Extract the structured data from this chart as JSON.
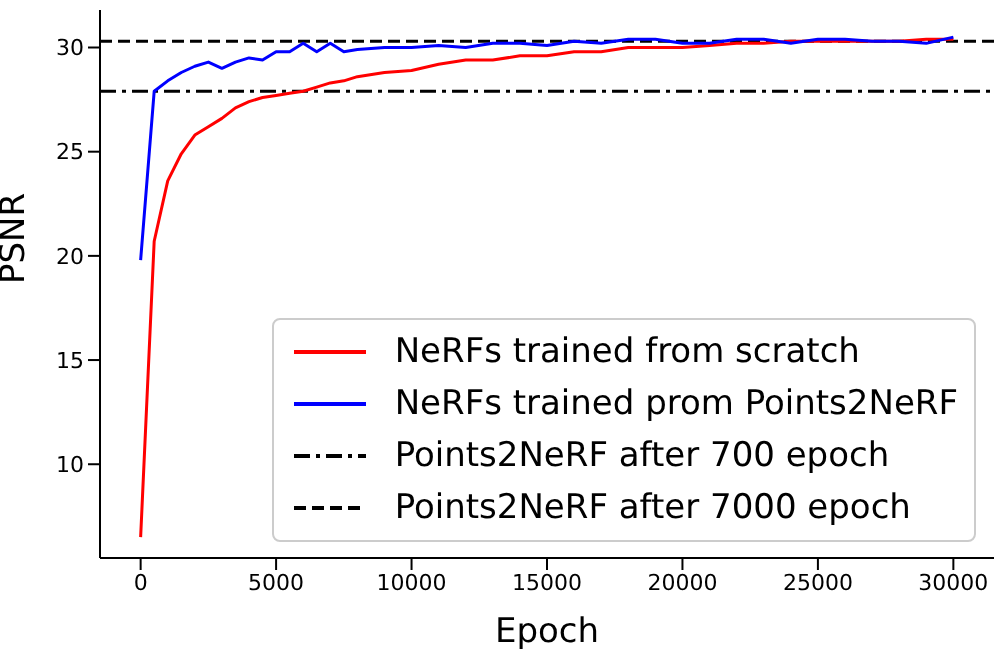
{
  "chart_data": {
    "type": "line",
    "xlabel": "Epoch",
    "ylabel": "PSNR",
    "xlim": [
      -1500,
      31500
    ],
    "xticks": [
      0,
      5000,
      10000,
      15000,
      20000,
      25000,
      30000
    ],
    "ylim": [
      5.5,
      31.8
    ],
    "yticks": [
      10,
      15,
      20,
      25,
      30
    ],
    "x": [
      0,
      500,
      1000,
      1500,
      2000,
      2500,
      3000,
      3500,
      4000,
      4500,
      5000,
      5500,
      6000,
      6500,
      7000,
      7500,
      8000,
      9000,
      10000,
      11000,
      12000,
      13000,
      14000,
      15000,
      16000,
      17000,
      18000,
      19000,
      20000,
      21000,
      22000,
      23000,
      24000,
      25000,
      26000,
      27000,
      28000,
      29000,
      30000
    ],
    "series": [
      {
        "name": "NeRFs trained from scratch",
        "color": "#ff0000",
        "values": [
          6.5,
          20.7,
          23.6,
          24.9,
          25.8,
          26.2,
          26.6,
          27.1,
          27.4,
          27.6,
          27.7,
          27.8,
          27.9,
          28.1,
          28.3,
          28.4,
          28.6,
          28.8,
          28.9,
          29.2,
          29.4,
          29.4,
          29.6,
          29.6,
          29.8,
          29.8,
          30.0,
          30.0,
          30.0,
          30.1,
          30.2,
          30.2,
          30.3,
          30.3,
          30.3,
          30.3,
          30.3,
          30.4,
          30.4
        ]
      },
      {
        "name": "NeRFs trained prom Points2NeRF",
        "color": "#0000ff",
        "values": [
          19.8,
          27.9,
          28.4,
          28.8,
          29.1,
          29.3,
          29.0,
          29.3,
          29.5,
          29.4,
          29.8,
          29.8,
          30.2,
          29.8,
          30.2,
          29.8,
          29.9,
          30.0,
          30.0,
          30.1,
          30.0,
          30.2,
          30.2,
          30.1,
          30.3,
          30.2,
          30.4,
          30.4,
          30.2,
          30.2,
          30.4,
          30.4,
          30.2,
          30.4,
          30.4,
          30.3,
          30.3,
          30.2,
          30.5
        ]
      }
    ],
    "ref_lines": [
      {
        "axis": "y",
        "value": 27.9,
        "label": "Points2NeRF after 700 epoch",
        "color": "#000000",
        "line_style": "dashdot"
      },
      {
        "axis": "y",
        "value": 30.3,
        "label": "Points2NeRF after 7000 epoch",
        "color": "#000000",
        "line_style": "dashed"
      }
    ],
    "legend": "bottom right",
    "grid": false,
    "marker": "none"
  }
}
